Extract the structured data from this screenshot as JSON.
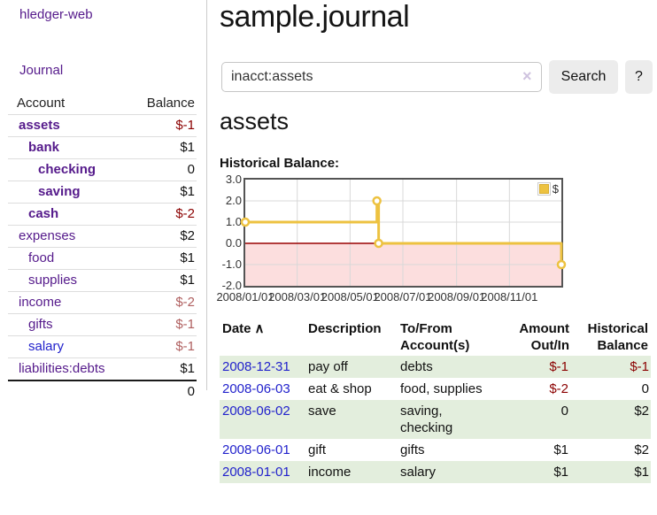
{
  "sidebar": {
    "brand": "hledger-web",
    "nav_journal": "Journal",
    "accounts_table": {
      "headers": {
        "account": "Account",
        "balance": "Balance"
      },
      "rows": [
        {
          "name": "assets",
          "depth": 1,
          "bold": true,
          "balance": "$-1",
          "balance_style": "neg-strong",
          "link": "visited"
        },
        {
          "name": "bank",
          "depth": 2,
          "bold": true,
          "balance": "$1",
          "balance_style": "pos",
          "link": "visited"
        },
        {
          "name": "checking",
          "depth": 3,
          "bold": true,
          "balance": "0",
          "balance_style": "pos",
          "link": "visited"
        },
        {
          "name": "saving",
          "depth": 3,
          "bold": true,
          "balance": "$1",
          "balance_style": "pos",
          "link": "visited"
        },
        {
          "name": "cash",
          "depth": 2,
          "bold": true,
          "balance": "$-2",
          "balance_style": "neg-strong",
          "link": "visited"
        },
        {
          "name": "expenses",
          "depth": 1,
          "bold": false,
          "balance": "$2",
          "balance_style": "pos",
          "link": "visited"
        },
        {
          "name": "food",
          "depth": 2,
          "bold": false,
          "balance": "$1",
          "balance_style": "pos",
          "link": "visited"
        },
        {
          "name": "supplies",
          "depth": 2,
          "bold": false,
          "balance": "$1",
          "balance_style": "pos",
          "link": "visited"
        },
        {
          "name": "income",
          "depth": 1,
          "bold": false,
          "balance": "$-2",
          "balance_style": "neg-soft",
          "link": "visited"
        },
        {
          "name": "gifts",
          "depth": 2,
          "bold": false,
          "balance": "$-1",
          "balance_style": "neg-soft",
          "link": "visited"
        },
        {
          "name": "salary",
          "depth": 2,
          "bold": false,
          "balance": "$-1",
          "balance_style": "neg-soft",
          "link": "unvisited"
        },
        {
          "name": "liabilities:debts",
          "depth": 1,
          "bold": false,
          "balance": "$1",
          "balance_style": "pos",
          "link": "visited"
        }
      ],
      "total": "0"
    }
  },
  "main": {
    "title": "sample.journal",
    "search": {
      "value": "inacct:assets",
      "clear_icon": "×",
      "button_label": "Search",
      "help_label": "?"
    },
    "account_heading": "assets",
    "chart_label": "Historical Balance:"
  },
  "chart_data": {
    "type": "line",
    "step": true,
    "title": "Historical Balance:",
    "series": [
      {
        "name": "$",
        "color": "#edc240",
        "points": [
          [
            "2008/01/01",
            1
          ],
          [
            "2008/06/01",
            2
          ],
          [
            "2008/06/03",
            0
          ],
          [
            "2008/12/31",
            -1
          ]
        ]
      }
    ],
    "ylim": [
      -2,
      3
    ],
    "yticks": [
      "3.0",
      "2.0",
      "1.0",
      "0.0",
      "-1.0",
      "-2.0"
    ],
    "xticks": [
      "2008/01/01",
      "2008/03/01",
      "2008/05/01",
      "2008/07/01",
      "2008/09/01",
      "2008/11/01"
    ],
    "legend": "$",
    "legend_position": "top-right",
    "grid": true,
    "negative_region_color": "#fcdede",
    "zero_line_color": "#990000",
    "grid_color": "#d8d8d8",
    "border_color": "#545454"
  },
  "register": {
    "headers": [
      "Date",
      "Description",
      "To/From Account(s)",
      "Amount Out/In",
      "Historical Balance"
    ],
    "sort_icon": "∧",
    "rows": [
      {
        "date": "2008-12-31",
        "description": "pay off",
        "accounts": "debts",
        "amount": "$-1",
        "amount_neg": true,
        "balance": "$-1",
        "balance_neg": true
      },
      {
        "date": "2008-06-03",
        "description": "eat & shop",
        "accounts": "food, supplies",
        "amount": "$-2",
        "amount_neg": true,
        "balance": "0",
        "balance_neg": false
      },
      {
        "date": "2008-06-02",
        "description": "save",
        "accounts": "saving, checking",
        "amount": "0",
        "amount_neg": false,
        "balance": "$2",
        "balance_neg": false
      },
      {
        "date": "2008-06-01",
        "description": "gift",
        "accounts": "gifts",
        "amount": "$1",
        "amount_neg": false,
        "balance": "$2",
        "balance_neg": false
      },
      {
        "date": "2008-01-01",
        "description": "income",
        "accounts": "salary",
        "amount": "$1",
        "amount_neg": false,
        "balance": "$1",
        "balance_neg": false
      }
    ]
  }
}
